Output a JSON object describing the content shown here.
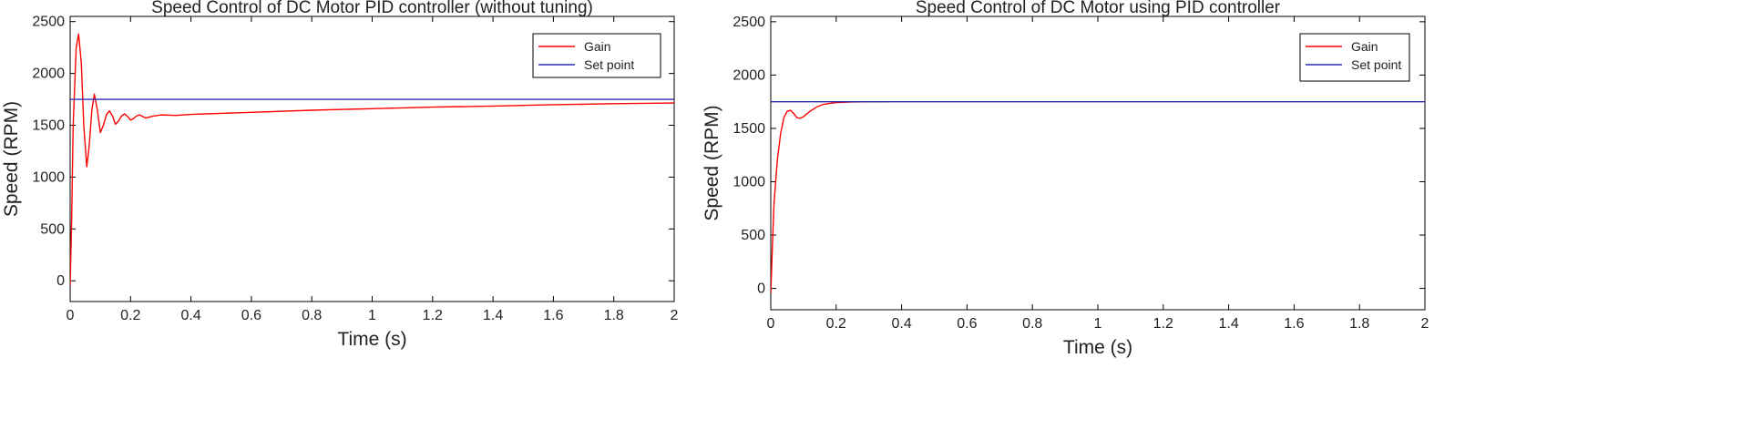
{
  "chart_data": [
    {
      "type": "line",
      "title": "Speed Control of DC Motor PID controller (without tuning)",
      "xlabel": "Time (s)",
      "ylabel": "Speed (RPM)",
      "xlim": [
        0,
        2
      ],
      "ylim": [
        -200,
        2550
      ],
      "xticks": [
        "0",
        "0.2",
        "0.4",
        "0.6",
        "0.8",
        "1",
        "1.2",
        "1.4",
        "1.6",
        "1.8",
        "2"
      ],
      "yticks": [
        "0",
        "500",
        "1000",
        "1500",
        "2000",
        "2500"
      ],
      "grid": false,
      "legend_position": "top-right",
      "series": [
        {
          "name": "Gain",
          "color": "#ff0000",
          "points": [
            [
              0,
              -50
            ],
            [
              0.005,
              600
            ],
            [
              0.01,
              1500
            ],
            [
              0.02,
              2250
            ],
            [
              0.028,
              2380
            ],
            [
              0.037,
              2100
            ],
            [
              0.045,
              1500
            ],
            [
              0.055,
              1100
            ],
            [
              0.063,
              1300
            ],
            [
              0.072,
              1650
            ],
            [
              0.08,
              1800
            ],
            [
              0.09,
              1650
            ],
            [
              0.1,
              1430
            ],
            [
              0.11,
              1500
            ],
            [
              0.12,
              1600
            ],
            [
              0.13,
              1640
            ],
            [
              0.14,
              1590
            ],
            [
              0.15,
              1510
            ],
            [
              0.16,
              1540
            ],
            [
              0.17,
              1590
            ],
            [
              0.18,
              1610
            ],
            [
              0.19,
              1585
            ],
            [
              0.2,
              1550
            ],
            [
              0.21,
              1565
            ],
            [
              0.22,
              1590
            ],
            [
              0.23,
              1600
            ],
            [
              0.24,
              1585
            ],
            [
              0.25,
              1570
            ],
            [
              0.27,
              1585
            ],
            [
              0.3,
              1600
            ],
            [
              0.35,
              1595
            ],
            [
              0.4,
              1605
            ],
            [
              0.6,
              1625
            ],
            [
              0.8,
              1645
            ],
            [
              1.0,
              1660
            ],
            [
              1.2,
              1675
            ],
            [
              1.4,
              1685
            ],
            [
              1.6,
              1698
            ],
            [
              1.8,
              1708
            ],
            [
              2.0,
              1715
            ]
          ]
        },
        {
          "name": "Set point",
          "color": "#2b2bb3",
          "points": [
            [
              0,
              1750
            ],
            [
              2,
              1750
            ]
          ]
        }
      ]
    },
    {
      "type": "line",
      "title": "Speed Control of DC Motor using PID controller",
      "xlabel": "Time (s)",
      "ylabel": "Speed (RPM)",
      "xlim": [
        0,
        2
      ],
      "ylim": [
        -200,
        2550
      ],
      "xticks": [
        "0",
        "0.2",
        "0.4",
        "0.6",
        "0.8",
        "1",
        "1.2",
        "1.4",
        "1.6",
        "1.8",
        "2"
      ],
      "yticks": [
        "0",
        "500",
        "1000",
        "1500",
        "2000",
        "2500"
      ],
      "grid": false,
      "legend_position": "top-right",
      "series": [
        {
          "name": "Gain",
          "color": "#ff0000",
          "points": [
            [
              0,
              -50
            ],
            [
              0.005,
              400
            ],
            [
              0.01,
              800
            ],
            [
              0.02,
              1200
            ],
            [
              0.03,
              1450
            ],
            [
              0.04,
              1600
            ],
            [
              0.05,
              1660
            ],
            [
              0.06,
              1670
            ],
            [
              0.07,
              1640
            ],
            [
              0.08,
              1600
            ],
            [
              0.09,
              1595
            ],
            [
              0.1,
              1610
            ],
            [
              0.12,
              1660
            ],
            [
              0.14,
              1700
            ],
            [
              0.16,
              1725
            ],
            [
              0.2,
              1742
            ],
            [
              0.25,
              1748
            ],
            [
              0.3,
              1750
            ],
            [
              0.36,
              1750
            ]
          ]
        },
        {
          "name": "Set point",
          "color": "#2b2bb3",
          "points": [
            [
              0,
              1750
            ],
            [
              2,
              1750
            ]
          ]
        }
      ]
    }
  ]
}
